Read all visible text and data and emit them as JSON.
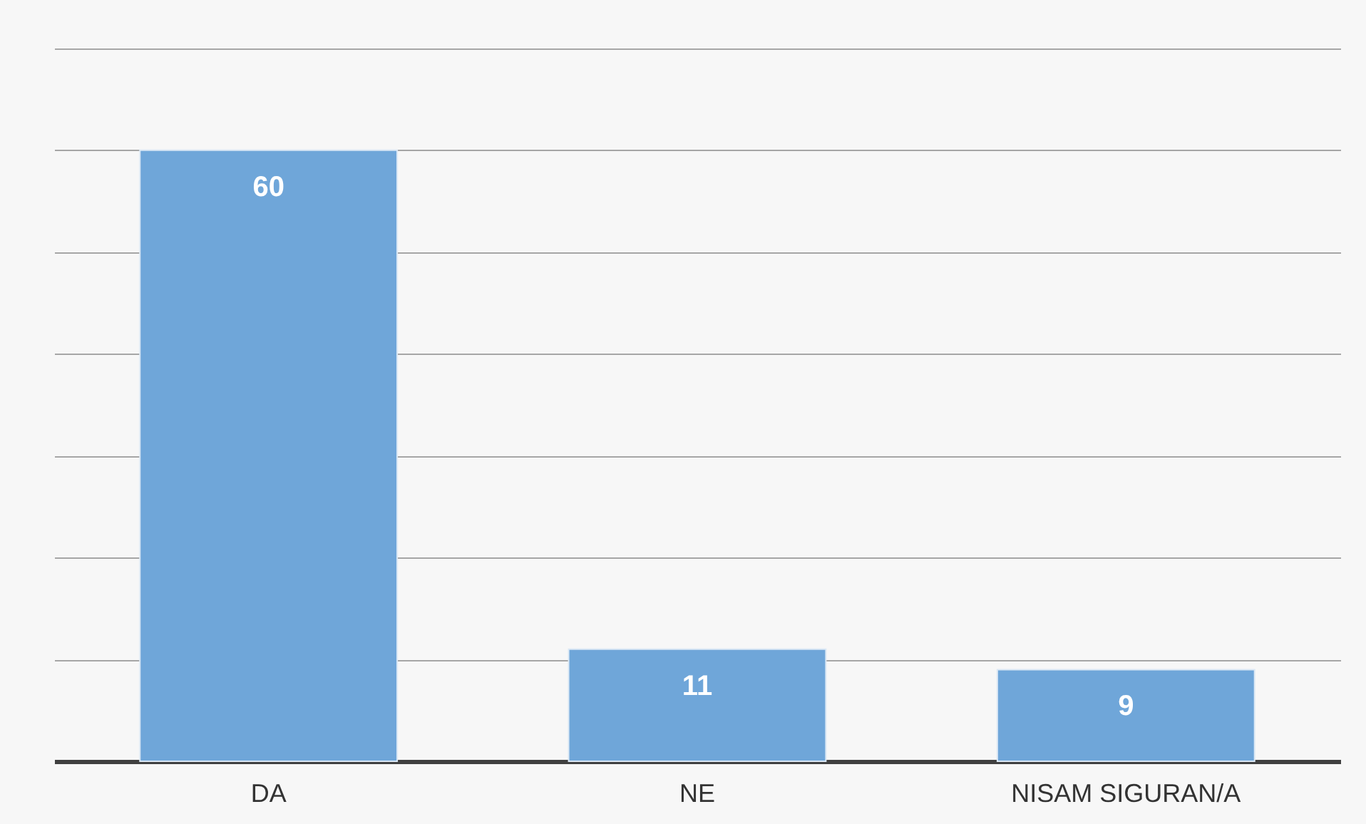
{
  "chart_data": {
    "type": "bar",
    "categories": [
      "DA",
      "NE",
      "NISAM SIGURAN/A"
    ],
    "values": [
      60,
      11,
      9
    ],
    "color": "#6fa6d9",
    "ylim": [
      0,
      70
    ],
    "yticks": [
      {
        "value": 0,
        "label": null
      },
      {
        "value": 10,
        "label": null
      },
      {
        "value": 20,
        "label": null
      },
      {
        "value": 30,
        "label": null
      },
      {
        "value": 40,
        "label": null
      },
      {
        "value": 50,
        "label": null
      },
      {
        "value": 60,
        "label": null
      },
      {
        "value": 70,
        "label": null
      }
    ],
    "grid": "y",
    "tick_labels": "x",
    "data_labels": true
  }
}
